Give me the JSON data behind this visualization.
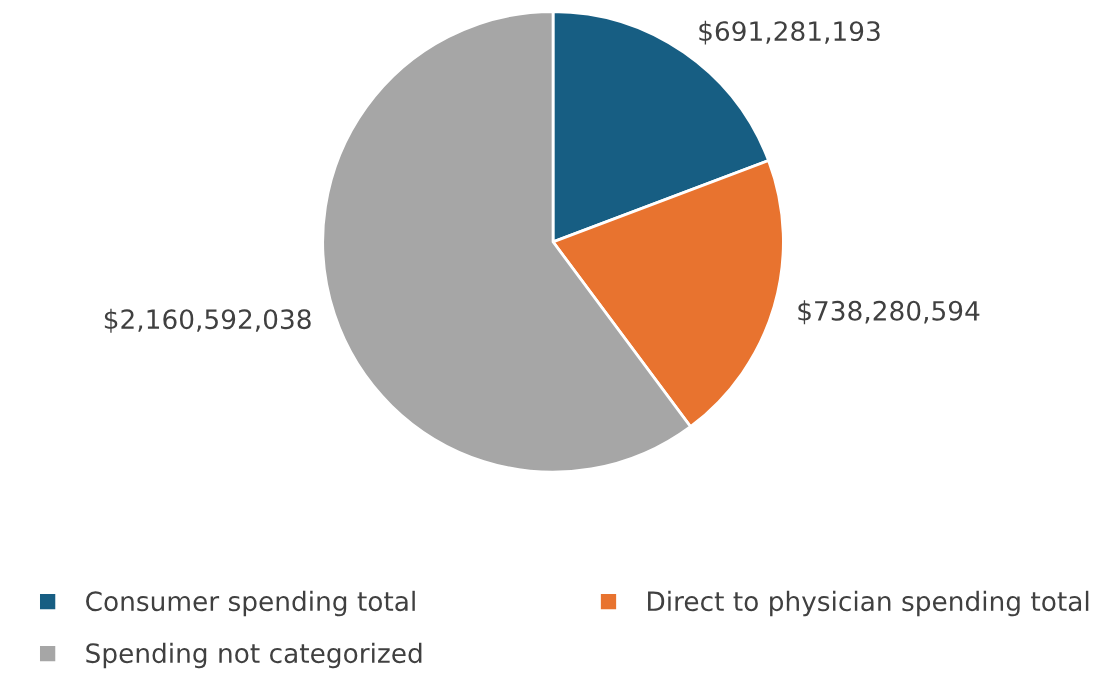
{
  "chart_data": {
    "type": "pie",
    "categories": [
      "Consumer spending total",
      "Direct to physician spending total",
      "Spending not categorized"
    ],
    "values": [
      691281193,
      738280594,
      2160592038
    ],
    "colors": [
      "#175e83",
      "#e8732f",
      "#a6a6a6"
    ],
    "value_labels": [
      "$691,281,193",
      "$738,280,594",
      "$2,160,592,038"
    ],
    "legend": "bottom"
  }
}
